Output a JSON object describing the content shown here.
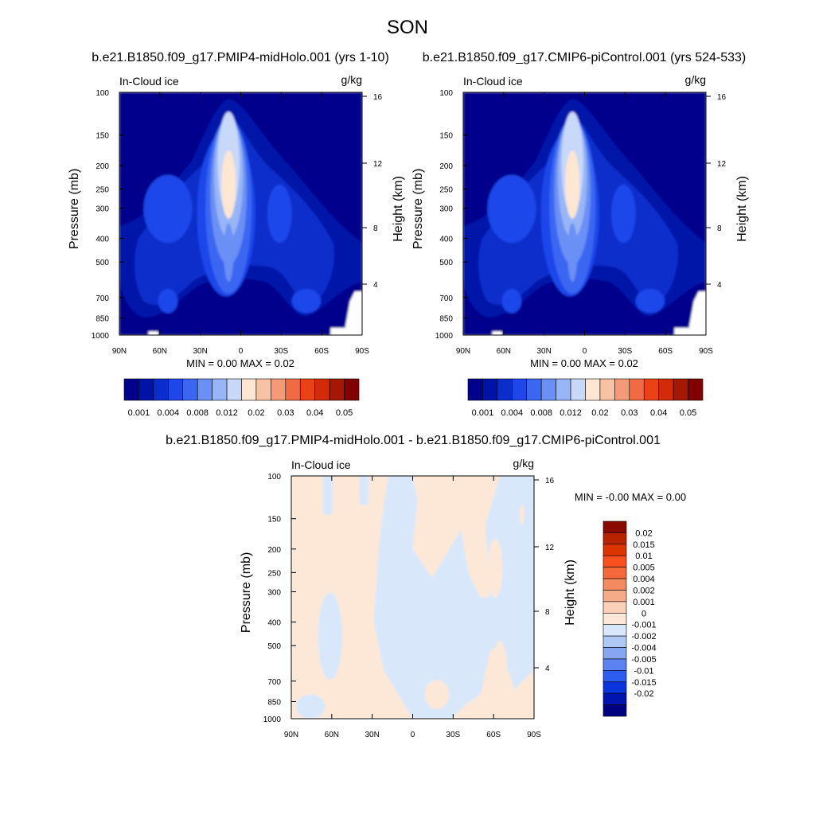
{
  "figure": {
    "season": "SON"
  },
  "chart_data": [
    {
      "type": "heatmap",
      "id": "panel-midholo",
      "title": "b.e21.B1850.f09_g17.PMIP4-midHolo.001 (yrs 1-10)",
      "variable": "In-Cloud ice",
      "units": "g/kg",
      "ylabel": "Pressure (mb)",
      "ylabel_right": "Height (km)",
      "x_ticks": [
        "90N",
        "60N",
        "30N",
        "0",
        "30S",
        "60S",
        "90S"
      ],
      "y_ticks": [
        "100",
        "150",
        "200",
        "250",
        "300",
        "400",
        "500",
        "700",
        "850",
        "1000"
      ],
      "y_ticks_right": [
        "16",
        "12",
        "8",
        "4"
      ],
      "stats": "MIN =   0.00  MAX =   0.02",
      "colorbar_labels": [
        "0.001",
        "0.004",
        "0.008",
        "0.012",
        "0.02",
        "0.03",
        "0.04",
        "0.05"
      ],
      "colorbar_colors": [
        "#00008c",
        "#0012a8",
        "#0a2ecb",
        "#1e46ea",
        "#3a66f2",
        "#6a90f5",
        "#98b5f7",
        "#c8d8f9",
        "#fde6d2",
        "#f8c3a4",
        "#f49a78",
        "#f06a44",
        "#ea4214",
        "#d32a08",
        "#a71804",
        "#800000"
      ]
    },
    {
      "type": "heatmap",
      "id": "panel-picontrol",
      "title": "b.e21.B1850.f09_g17.CMIP6-piControl.001 (yrs 524-533)",
      "variable": "In-Cloud ice",
      "units": "g/kg",
      "ylabel": "Pressure (mb)",
      "ylabel_right": "Height (km)",
      "x_ticks": [
        "90N",
        "60N",
        "30N",
        "0",
        "30S",
        "60S",
        "90S"
      ],
      "y_ticks": [
        "100",
        "150",
        "200",
        "250",
        "300",
        "400",
        "500",
        "700",
        "850",
        "1000"
      ],
      "y_ticks_right": [
        "16",
        "12",
        "8",
        "4"
      ],
      "stats": "MIN =   0.00  MAX =   0.02",
      "colorbar_labels": [
        "0.001",
        "0.004",
        "0.008",
        "0.012",
        "0.02",
        "0.03",
        "0.04",
        "0.05"
      ],
      "colorbar_colors": [
        "#00008c",
        "#0012a8",
        "#0a2ecb",
        "#1e46ea",
        "#3a66f2",
        "#6a90f5",
        "#98b5f7",
        "#c8d8f9",
        "#fde6d2",
        "#f8c3a4",
        "#f49a78",
        "#f06a44",
        "#ea4214",
        "#d32a08",
        "#a71804",
        "#800000"
      ]
    },
    {
      "type": "heatmap",
      "id": "panel-difference",
      "title": "b.e21.B1850.f09_g17.PMIP4-midHolo.001 - b.e21.B1850.f09_g17.CMIP6-piControl.001",
      "variable": "In-Cloud ice",
      "units": "g/kg",
      "ylabel": "Pressure (mb)",
      "ylabel_right": "Height (km)",
      "x_ticks": [
        "90N",
        "60N",
        "30N",
        "0",
        "30S",
        "60S",
        "90S"
      ],
      "y_ticks": [
        "100",
        "150",
        "200",
        "250",
        "300",
        "400",
        "500",
        "700",
        "850",
        "1000"
      ],
      "y_ticks_right": [
        "16",
        "12",
        "8",
        "4"
      ],
      "stats": "MIN =  -0.00  MAX =    0.00",
      "colorbar_labels": [
        "0.02",
        "0.015",
        "0.01",
        "0.005",
        "0.004",
        "0.002",
        "0.001",
        "0",
        "-0.001",
        "-0.002",
        "-0.004",
        "-0.005",
        "-0.01",
        "-0.015",
        "-0.02"
      ],
      "colorbar_colors": [
        "#8b0a00",
        "#b82400",
        "#dc3400",
        "#f8501e",
        "#f26a3a",
        "#f38a60",
        "#f6ab88",
        "#fbd0b8",
        "#fde8d8",
        "#d8e8fa",
        "#b0c8f5",
        "#86a6f1",
        "#5a82f0",
        "#2d5cf0",
        "#0a34dc",
        "#0014b0",
        "#000080"
      ],
      "field_colors": {
        "positive": "#fde8d8",
        "negative": "#d8e8fa"
      }
    }
  ]
}
